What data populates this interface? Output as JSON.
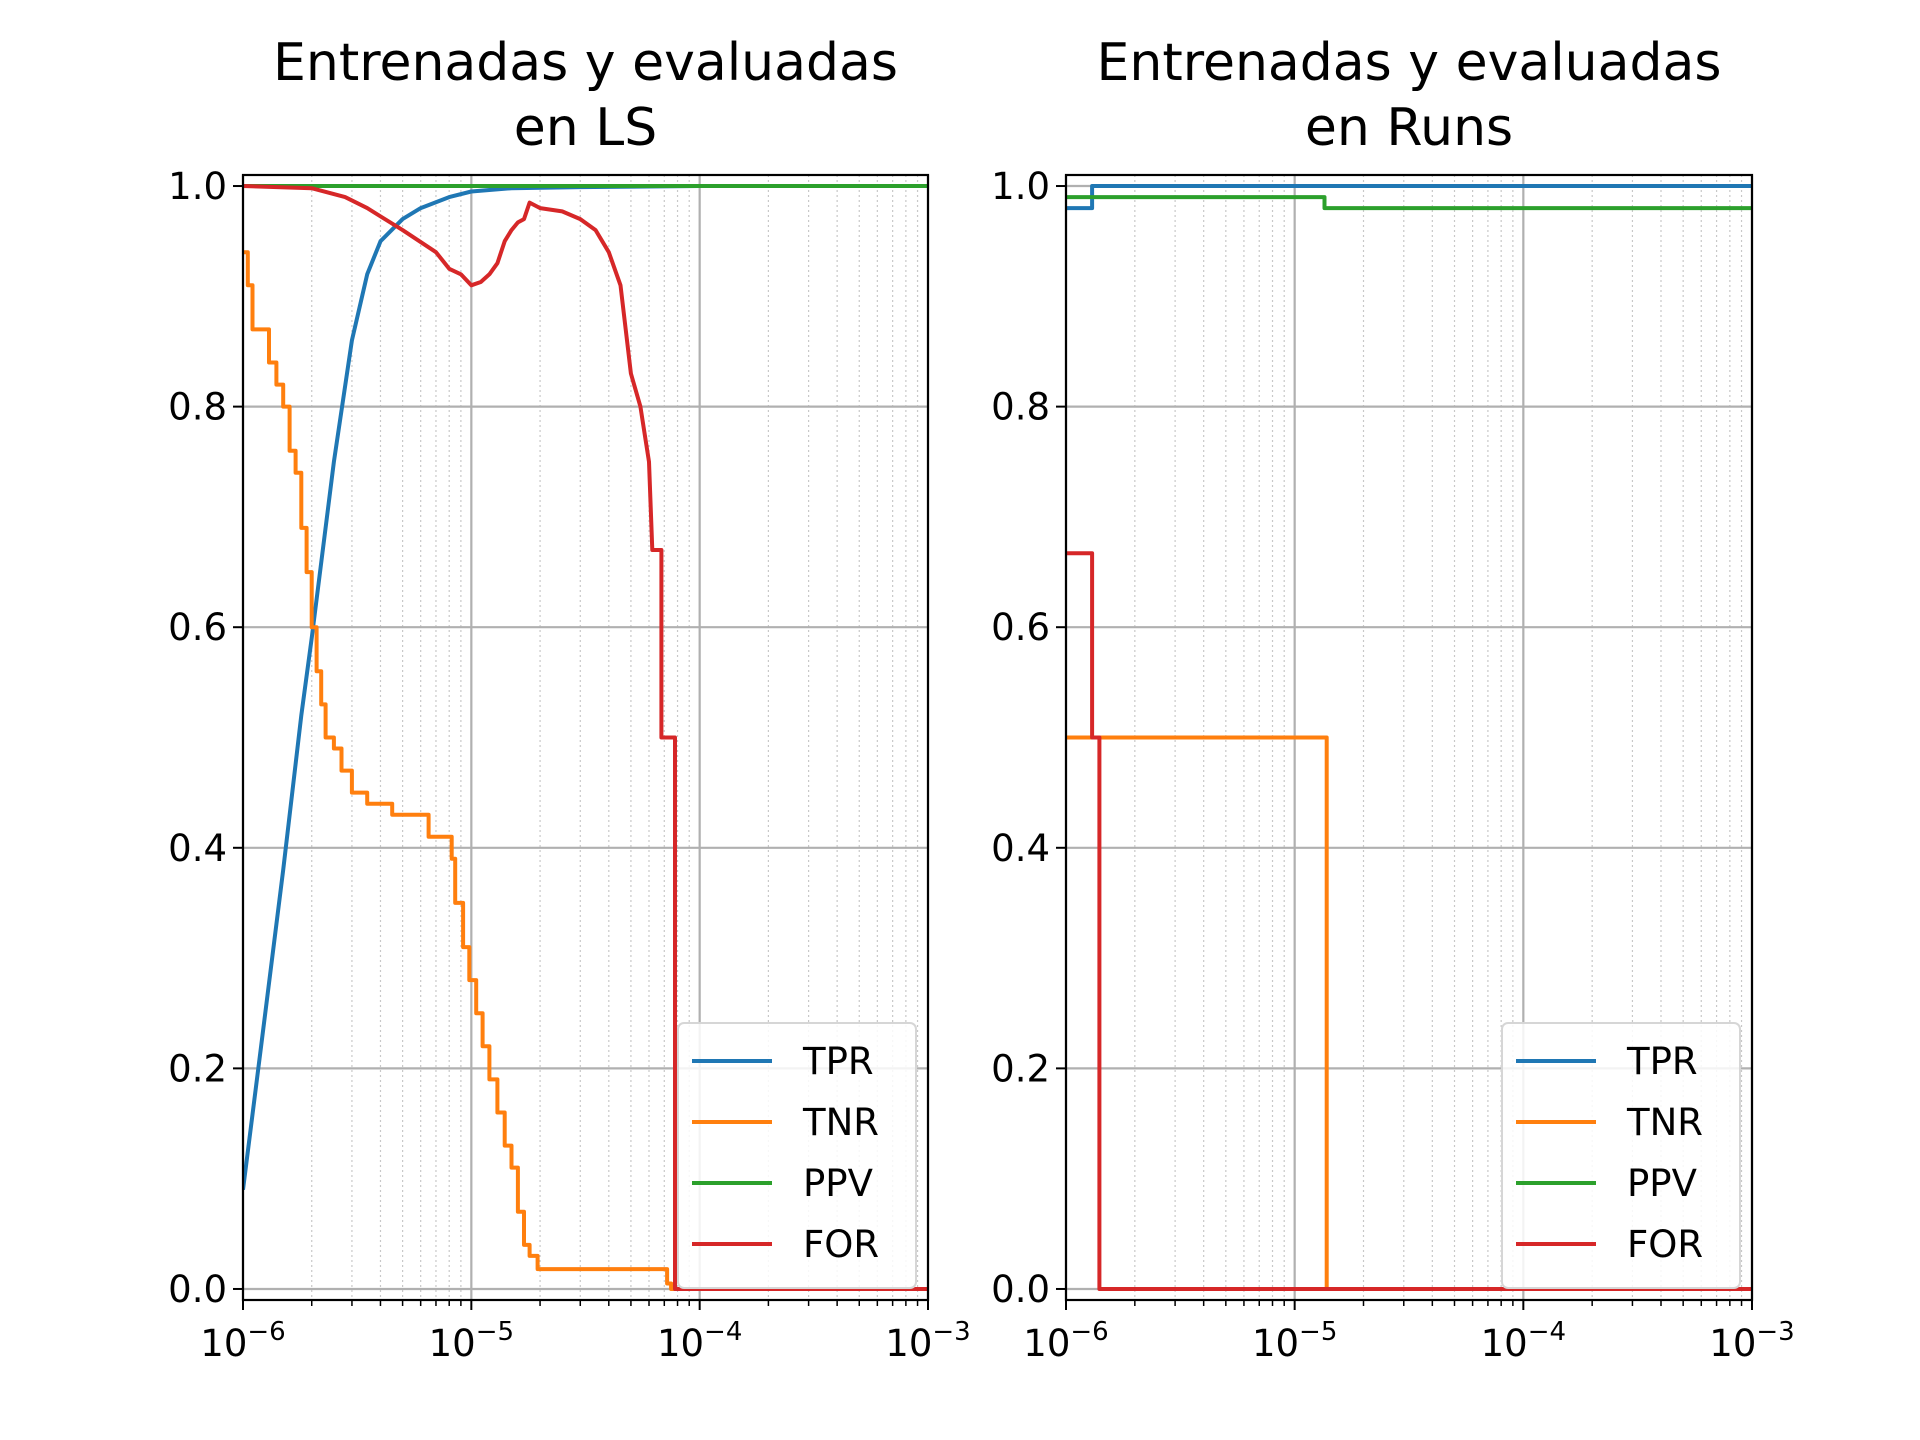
{
  "chart_data": [
    {
      "type": "line",
      "title": "Entrenadas y evaluadas\nen LS",
      "xscale": "log",
      "xlim": [
        1e-06,
        0.001
      ],
      "ylim": [
        -0.01,
        1.01
      ],
      "xticks": [
        {
          "base": "10",
          "exp": "−6"
        },
        {
          "base": "10",
          "exp": "−5"
        },
        {
          "base": "10",
          "exp": "−4"
        },
        {
          "base": "10",
          "exp": "−3"
        }
      ],
      "yticks": [
        "0.0",
        "0.2",
        "0.4",
        "0.6",
        "0.8",
        "1.0"
      ],
      "grid": true,
      "minor_grid": true,
      "legend": "lower right",
      "series": [
        {
          "name": "TPR",
          "color": "#1f77b4",
          "step": false,
          "points": [
            [
              1e-06,
              0.09
            ],
            [
              1.2e-06,
              0.22
            ],
            [
              1.5e-06,
              0.38
            ],
            [
              1.8e-06,
              0.52
            ],
            [
              2e-06,
              0.59
            ],
            [
              2.5e-06,
              0.75
            ],
            [
              3e-06,
              0.86
            ],
            [
              3.5e-06,
              0.92
            ],
            [
              4e-06,
              0.95
            ],
            [
              5e-06,
              0.97
            ],
            [
              6e-06,
              0.98
            ],
            [
              8e-06,
              0.99
            ],
            [
              1e-05,
              0.995
            ],
            [
              1.5e-05,
              0.998
            ],
            [
              3e-05,
              0.999
            ],
            [
              0.0001,
              1.0
            ],
            [
              0.001,
              1.0
            ]
          ]
        },
        {
          "name": "TNR",
          "color": "#ff7f0e",
          "step": true,
          "points": [
            [
              1e-06,
              0.94
            ],
            [
              1.05e-06,
              0.91
            ],
            [
              1.1e-06,
              0.87
            ],
            [
              1.3e-06,
              0.84
            ],
            [
              1.4e-06,
              0.82
            ],
            [
              1.5e-06,
              0.8
            ],
            [
              1.6e-06,
              0.76
            ],
            [
              1.7e-06,
              0.74
            ],
            [
              1.8e-06,
              0.69
            ],
            [
              1.9e-06,
              0.65
            ],
            [
              2e-06,
              0.6
            ],
            [
              2.1e-06,
              0.56
            ],
            [
              2.2e-06,
              0.53
            ],
            [
              2.3e-06,
              0.5
            ],
            [
              2.5e-06,
              0.49
            ],
            [
              2.7e-06,
              0.47
            ],
            [
              3e-06,
              0.45
            ],
            [
              3.5e-06,
              0.44
            ],
            [
              4.5e-06,
              0.43
            ],
            [
              6.5e-06,
              0.41
            ],
            [
              8.2e-06,
              0.39
            ],
            [
              8.5e-06,
              0.35
            ],
            [
              9.2e-06,
              0.31
            ],
            [
              9.8e-06,
              0.28
            ],
            [
              1.05e-05,
              0.25
            ],
            [
              1.12e-05,
              0.22
            ],
            [
              1.2e-05,
              0.19
            ],
            [
              1.3e-05,
              0.16
            ],
            [
              1.4e-05,
              0.13
            ],
            [
              1.5e-05,
              0.11
            ],
            [
              1.6e-05,
              0.07
            ],
            [
              1.7e-05,
              0.04
            ],
            [
              1.8e-05,
              0.03
            ],
            [
              1.95e-05,
              0.018
            ],
            [
              7e-05,
              0.018
            ],
            [
              7.2e-05,
              0.005
            ],
            [
              7.5e-05,
              0.0
            ],
            [
              0.001,
              0.0
            ]
          ]
        },
        {
          "name": "PPV",
          "color": "#2ca02c",
          "step": false,
          "points": [
            [
              1e-06,
              1.0
            ],
            [
              0.001,
              1.0
            ]
          ]
        },
        {
          "name": "FOR",
          "color": "#d62728",
          "step": false,
          "points": [
            [
              1e-06,
              1.0
            ],
            [
              2e-06,
              0.998
            ],
            [
              2.8e-06,
              0.99
            ],
            [
              3.5e-06,
              0.98
            ],
            [
              5e-06,
              0.96
            ],
            [
              7e-06,
              0.94
            ],
            [
              8e-06,
              0.925
            ],
            [
              9e-06,
              0.92
            ],
            [
              1e-05,
              0.91
            ],
            [
              1.1e-05,
              0.913
            ],
            [
              1.2e-05,
              0.92
            ],
            [
              1.3e-05,
              0.93
            ],
            [
              1.4e-05,
              0.95
            ],
            [
              1.5e-05,
              0.96
            ],
            [
              1.6e-05,
              0.967
            ],
            [
              1.7e-05,
              0.97
            ],
            [
              1.8e-05,
              0.985
            ],
            [
              2e-05,
              0.98
            ],
            [
              2.5e-05,
              0.977
            ],
            [
              3e-05,
              0.97
            ],
            [
              3.5e-05,
              0.96
            ],
            [
              4e-05,
              0.94
            ],
            [
              4.5e-05,
              0.91
            ],
            [
              5e-05,
              0.83
            ],
            [
              5.5e-05,
              0.8
            ],
            [
              6e-05,
              0.75
            ],
            [
              6.2e-05,
              0.67
            ],
            [
              6.8e-05,
              0.67
            ],
            [
              6.8e-05,
              0.5
            ],
            [
              7.8e-05,
              0.5
            ],
            [
              7.8e-05,
              0.0
            ],
            [
              0.001,
              0.0
            ]
          ]
        }
      ]
    },
    {
      "type": "line",
      "title": "Entrenadas y evaluadas\nen Runs",
      "xscale": "log",
      "xlim": [
        1e-06,
        0.001
      ],
      "ylim": [
        -0.01,
        1.01
      ],
      "xticks": [
        {
          "base": "10",
          "exp": "−6"
        },
        {
          "base": "10",
          "exp": "−5"
        },
        {
          "base": "10",
          "exp": "−4"
        },
        {
          "base": "10",
          "exp": "−3"
        }
      ],
      "yticks": [
        "0.0",
        "0.2",
        "0.4",
        "0.6",
        "0.8",
        "1.0"
      ],
      "grid": true,
      "minor_grid": true,
      "legend": "lower right",
      "series": [
        {
          "name": "TPR",
          "color": "#1f77b4",
          "step": false,
          "points": [
            [
              1e-06,
              0.98
            ],
            [
              1.3e-06,
              0.98
            ],
            [
              1.3e-06,
              1.0
            ],
            [
              0.001,
              1.0
            ]
          ]
        },
        {
          "name": "TNR",
          "color": "#ff7f0e",
          "step": false,
          "points": [
            [
              1e-06,
              0.5
            ],
            [
              1.38e-05,
              0.5
            ],
            [
              1.38e-05,
              0.0
            ],
            [
              0.001,
              0.0
            ]
          ]
        },
        {
          "name": "PPV",
          "color": "#2ca02c",
          "step": false,
          "points": [
            [
              1e-06,
              0.99
            ],
            [
              1.35e-05,
              0.99
            ],
            [
              1.35e-05,
              0.98
            ],
            [
              0.001,
              0.98
            ]
          ]
        },
        {
          "name": "FOR",
          "color": "#d62728",
          "step": false,
          "points": [
            [
              1e-06,
              0.667
            ],
            [
              1.3e-06,
              0.667
            ],
            [
              1.3e-06,
              0.5
            ],
            [
              1.4e-06,
              0.5
            ],
            [
              1.4e-06,
              0.0
            ],
            [
              0.001,
              0.0
            ]
          ]
        }
      ]
    }
  ]
}
